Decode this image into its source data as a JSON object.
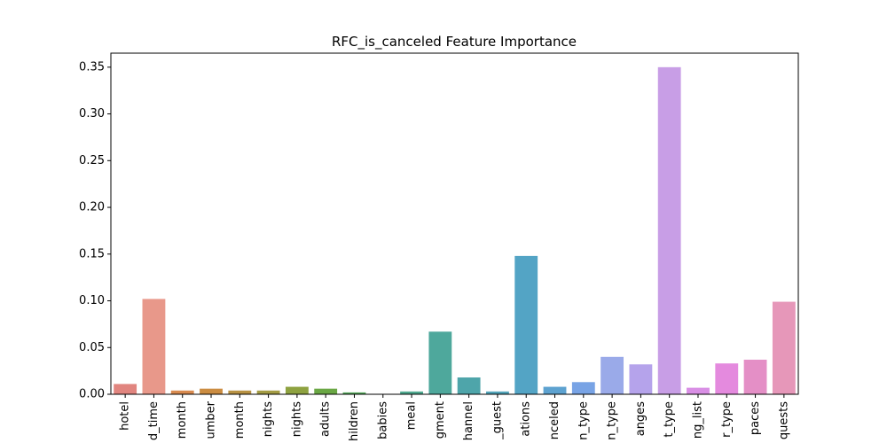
{
  "chart_data": {
    "type": "bar",
    "title": "RFC_is_canceled Feature Importance",
    "xlabel": "",
    "ylabel": "",
    "ylim": [
      0,
      0.365
    ],
    "yticks": [
      "0.00",
      "0.05",
      "0.10",
      "0.15",
      "0.20",
      "0.25",
      "0.30",
      "0.35"
    ],
    "grid": false,
    "categories": [
      "hotel",
      "lead_time",
      "arrival_date_month",
      "arrival_date_week_number",
      "arrival_date_day_of_month",
      "stays_in_weekend_nights",
      "stays_in_week_nights",
      "adults",
      "children",
      "babies",
      "meal",
      "market_segment",
      "distribution_channel",
      "is_repeated_guest",
      "previous_cancellations",
      "previous_bookings_not_canceled",
      "reserved_room_type",
      "assigned_room_type",
      "booking_changes",
      "deposit_type",
      "days_in_waiting_list",
      "customer_type",
      "required_car_parking_spaces",
      "total_of_special_requests"
    ],
    "tick_labels": [
      "hotel",
      "d_time",
      "month",
      "umber",
      "month",
      "nights",
      "nights",
      "adults",
      "hildren",
      "babies",
      "meal",
      "gment",
      "hannel",
      "_guest",
      "ations",
      "nceled",
      "n_type",
      "n_type",
      "anges",
      "t_type",
      "ng_list",
      "r_type",
      "paces",
      "quests"
    ],
    "values": [
      0.011,
      0.102,
      0.004,
      0.006,
      0.004,
      0.004,
      0.008,
      0.006,
      0.002,
      0.0,
      0.003,
      0.067,
      0.018,
      0.003,
      0.148,
      0.008,
      0.013,
      0.04,
      0.032,
      0.35,
      0.007,
      0.033,
      0.037,
      0.099
    ],
    "colors": [
      "#e1857f",
      "#e8988a",
      "#d88a4f",
      "#cb8c41",
      "#b89243",
      "#a49c44",
      "#8ea240",
      "#6aa744",
      "#53a659",
      "#4ba77a",
      "#4ea88e",
      "#4ea89c",
      "#4ea5aa",
      "#51a3b8",
      "#53a4c5",
      "#5da2d0",
      "#78a3e5",
      "#9aaae9",
      "#b5a3eb",
      "#c89ee6",
      "#d98fe5",
      "#e48ade",
      "#e48fc6",
      "#e697b9"
    ]
  }
}
